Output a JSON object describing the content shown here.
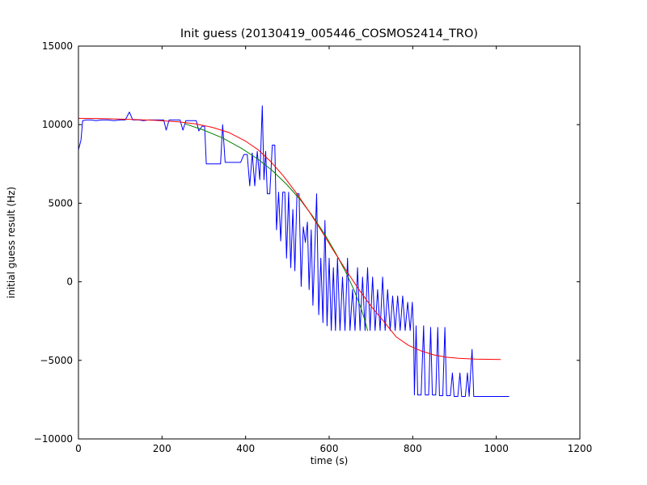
{
  "chart_data": {
    "type": "line",
    "title": "Init guess (20130419_005446_COSMOS2414_TRO)",
    "xlabel": "time (s)",
    "ylabel": "initial guess result (Hz)",
    "xlim": [
      0,
      1200
    ],
    "ylim": [
      -10000,
      15000
    ],
    "xticks": [
      0,
      200,
      400,
      600,
      800,
      1000,
      1200
    ],
    "xtick_labels": [
      "0",
      "200",
      "400",
      "600",
      "800",
      "1000",
      "1200"
    ],
    "yticks": [
      -10000,
      -5000,
      0,
      5000,
      10000,
      15000
    ],
    "ytick_labels": [
      "−10000",
      "−5000",
      "0",
      "5000",
      "10000",
      "15000"
    ],
    "grid": false,
    "legend": null,
    "series": [
      {
        "name": "initial-guess-data",
        "color": "#0000ff",
        "points": [
          [
            0,
            8400
          ],
          [
            6,
            9000
          ],
          [
            10,
            10250
          ],
          [
            18,
            10300
          ],
          [
            30,
            10300
          ],
          [
            42,
            10250
          ],
          [
            55,
            10300
          ],
          [
            70,
            10300
          ],
          [
            85,
            10250
          ],
          [
            100,
            10300
          ],
          [
            112,
            10300
          ],
          [
            122,
            10800
          ],
          [
            130,
            10300
          ],
          [
            145,
            10300
          ],
          [
            155,
            10250
          ],
          [
            168,
            10300
          ],
          [
            182,
            10300
          ],
          [
            196,
            10300
          ],
          [
            204,
            10300
          ],
          [
            210,
            9650
          ],
          [
            217,
            10300
          ],
          [
            230,
            10300
          ],
          [
            243,
            10300
          ],
          [
            250,
            9650
          ],
          [
            257,
            10250
          ],
          [
            270,
            10250
          ],
          [
            282,
            10250
          ],
          [
            288,
            9600
          ],
          [
            296,
            9900
          ],
          [
            302,
            9900
          ],
          [
            306,
            7500
          ],
          [
            318,
            7500
          ],
          [
            330,
            7500
          ],
          [
            340,
            7500
          ],
          [
            345,
            10000
          ],
          [
            351,
            7600
          ],
          [
            362,
            7600
          ],
          [
            375,
            7600
          ],
          [
            388,
            7600
          ],
          [
            396,
            8100
          ],
          [
            404,
            8100
          ],
          [
            410,
            6100
          ],
          [
            416,
            8200
          ],
          [
            422,
            6100
          ],
          [
            428,
            8300
          ],
          [
            434,
            6500
          ],
          [
            440,
            11200
          ],
          [
            444,
            6500
          ],
          [
            448,
            8300
          ],
          [
            452,
            5600
          ],
          [
            458,
            5600
          ],
          [
            464,
            8700
          ],
          [
            470,
            8700
          ],
          [
            474,
            3300
          ],
          [
            479,
            5700
          ],
          [
            484,
            2600
          ],
          [
            489,
            5700
          ],
          [
            494,
            5700
          ],
          [
            498,
            1500
          ],
          [
            503,
            5700
          ],
          [
            508,
            900
          ],
          [
            513,
            4600
          ],
          [
            518,
            700
          ],
          [
            523,
            5600
          ],
          [
            528,
            5600
          ],
          [
            533,
            -300
          ],
          [
            538,
            3500
          ],
          [
            543,
            2500
          ],
          [
            548,
            3800
          ],
          [
            552,
            -500
          ],
          [
            557,
            3300
          ],
          [
            561,
            -1500
          ],
          [
            566,
            2300
          ],
          [
            570,
            5600
          ],
          [
            575,
            -2100
          ],
          [
            580,
            1500
          ],
          [
            585,
            -2600
          ],
          [
            590,
            3900
          ],
          [
            595,
            -2800
          ],
          [
            600,
            1500
          ],
          [
            605,
            -3100
          ],
          [
            610,
            900
          ],
          [
            615,
            -3100
          ],
          [
            620,
            1500
          ],
          [
            626,
            -3100
          ],
          [
            632,
            300
          ],
          [
            638,
            -3100
          ],
          [
            644,
            1500
          ],
          [
            650,
            -3100
          ],
          [
            656,
            -500
          ],
          [
            662,
            -3100
          ],
          [
            668,
            900
          ],
          [
            674,
            -3100
          ],
          [
            680,
            300
          ],
          [
            686,
            -3100
          ],
          [
            692,
            900
          ],
          [
            698,
            -3100
          ],
          [
            704,
            300
          ],
          [
            710,
            -3100
          ],
          [
            716,
            -500
          ],
          [
            722,
            -3100
          ],
          [
            728,
            300
          ],
          [
            734,
            -3100
          ],
          [
            740,
            -500
          ],
          [
            746,
            -3100
          ],
          [
            752,
            -900
          ],
          [
            758,
            -3100
          ],
          [
            764,
            -900
          ],
          [
            770,
            -3100
          ],
          [
            776,
            -900
          ],
          [
            782,
            -3100
          ],
          [
            788,
            -1300
          ],
          [
            794,
            -3100
          ],
          [
            799,
            -1300
          ],
          [
            802,
            -3100
          ],
          [
            804,
            -7200
          ],
          [
            808,
            -2800
          ],
          [
            812,
            -7200
          ],
          [
            820,
            -7200
          ],
          [
            826,
            -2800
          ],
          [
            830,
            -7200
          ],
          [
            838,
            -7200
          ],
          [
            843,
            -2900
          ],
          [
            847,
            -7200
          ],
          [
            855,
            -7200
          ],
          [
            860,
            -2900
          ],
          [
            864,
            -7250
          ],
          [
            872,
            -7250
          ],
          [
            877,
            -2900
          ],
          [
            881,
            -7250
          ],
          [
            890,
            -7250
          ],
          [
            895,
            -5800
          ],
          [
            899,
            -7300
          ],
          [
            908,
            -7300
          ],
          [
            913,
            -5800
          ],
          [
            917,
            -7300
          ],
          [
            926,
            -7300
          ],
          [
            931,
            -5800
          ],
          [
            935,
            -7300
          ],
          [
            942,
            -4300
          ],
          [
            946,
            -7300
          ],
          [
            958,
            -7300
          ],
          [
            972,
            -7300
          ],
          [
            988,
            -7300
          ],
          [
            1004,
            -7300
          ],
          [
            1018,
            -7300
          ],
          [
            1030,
            -7300
          ]
        ]
      },
      {
        "name": "fit-green",
        "color": "#008000",
        "points": [
          [
            255,
            10050
          ],
          [
            300,
            9650
          ],
          [
            345,
            9150
          ],
          [
            390,
            8500
          ],
          [
            430,
            7800
          ],
          [
            465,
            7050
          ],
          [
            500,
            6150
          ],
          [
            530,
            5250
          ],
          [
            560,
            4200
          ],
          [
            590,
            3000
          ],
          [
            615,
            1850
          ],
          [
            640,
            600
          ],
          [
            660,
            -550
          ],
          [
            675,
            -1600
          ],
          [
            685,
            -2400
          ],
          [
            692,
            -3100
          ]
        ]
      },
      {
        "name": "fit-red",
        "color": "#ff0000",
        "points": [
          [
            0,
            10400
          ],
          [
            60,
            10380
          ],
          [
            120,
            10340
          ],
          [
            180,
            10280
          ],
          [
            240,
            10180
          ],
          [
            280,
            10050
          ],
          [
            320,
            9830
          ],
          [
            360,
            9500
          ],
          [
            400,
            8950
          ],
          [
            430,
            8400
          ],
          [
            460,
            7650
          ],
          [
            490,
            6750
          ],
          [
            520,
            5700
          ],
          [
            550,
            4550
          ],
          [
            580,
            3300
          ],
          [
            610,
            2000
          ],
          [
            640,
            750
          ],
          [
            670,
            -450
          ],
          [
            700,
            -1550
          ],
          [
            730,
            -2500
          ],
          [
            760,
            -3500
          ],
          [
            790,
            -4050
          ],
          [
            820,
            -4400
          ],
          [
            850,
            -4650
          ],
          [
            880,
            -4800
          ],
          [
            910,
            -4870
          ],
          [
            950,
            -4920
          ],
          [
            1010,
            -4950
          ]
        ]
      }
    ]
  }
}
